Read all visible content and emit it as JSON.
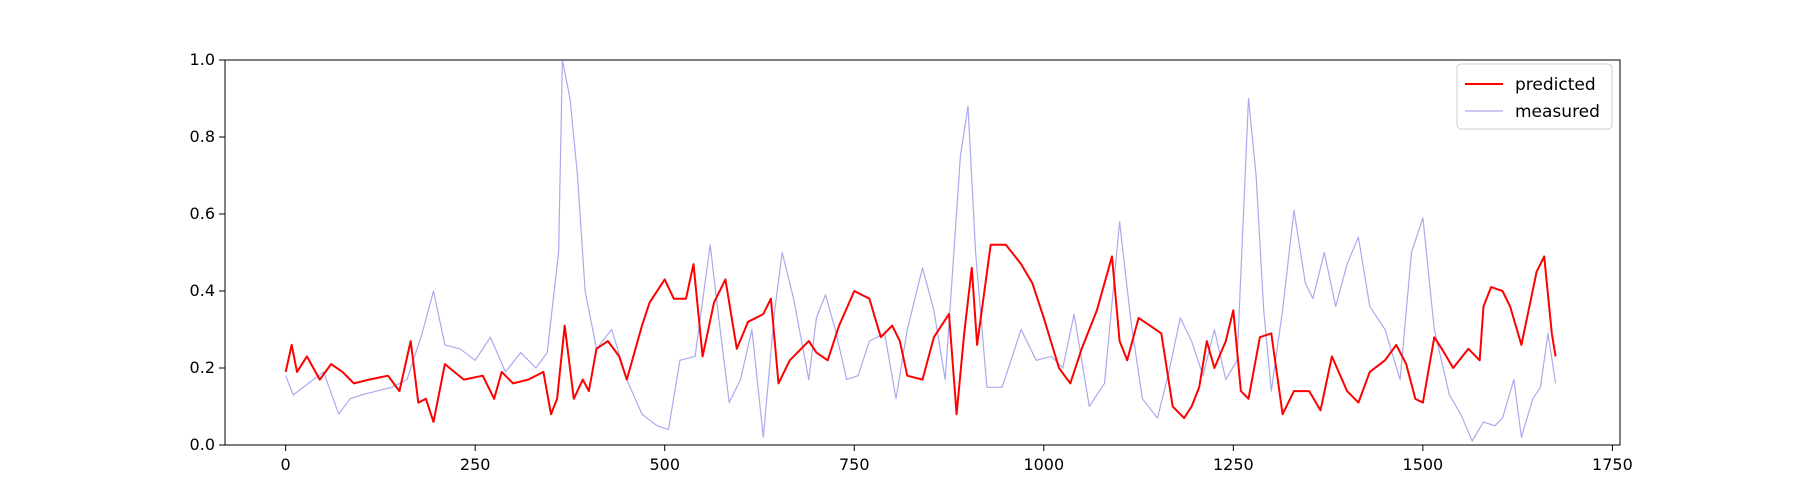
{
  "chart_data": {
    "type": "line",
    "title": "",
    "xlabel": "",
    "ylabel": "",
    "xlim": [
      -80,
      1760
    ],
    "ylim": [
      0,
      1
    ],
    "xticks": [
      0,
      250,
      500,
      750,
      1000,
      1250,
      1500,
      1750
    ],
    "yticks": [
      0.0,
      0.2,
      0.4,
      0.6,
      0.8,
      1.0
    ],
    "xtick_labels": [
      "0",
      "250",
      "500",
      "750",
      "1000",
      "1250",
      "1500",
      "1750"
    ],
    "ytick_labels": [
      "0.0",
      "0.2",
      "0.4",
      "0.6",
      "0.8",
      "1.0"
    ],
    "grid": false,
    "legend": {
      "placement": "top-right",
      "entries": [
        "predicted",
        "measured"
      ]
    },
    "series": [
      {
        "name": "predicted",
        "color": "#ff0000",
        "points": [
          [
            0,
            0.19
          ],
          [
            8,
            0.26
          ],
          [
            15,
            0.19
          ],
          [
            28,
            0.23
          ],
          [
            45,
            0.17
          ],
          [
            60,
            0.21
          ],
          [
            75,
            0.19
          ],
          [
            90,
            0.16
          ],
          [
            110,
            0.17
          ],
          [
            135,
            0.18
          ],
          [
            150,
            0.14
          ],
          [
            165,
            0.27
          ],
          [
            175,
            0.11
          ],
          [
            185,
            0.12
          ],
          [
            195,
            0.06
          ],
          [
            210,
            0.21
          ],
          [
            235,
            0.17
          ],
          [
            260,
            0.18
          ],
          [
            275,
            0.12
          ],
          [
            285,
            0.19
          ],
          [
            300,
            0.16
          ],
          [
            320,
            0.17
          ],
          [
            340,
            0.19
          ],
          [
            350,
            0.08
          ],
          [
            358,
            0.12
          ],
          [
            368,
            0.31
          ],
          [
            380,
            0.12
          ],
          [
            392,
            0.17
          ],
          [
            400,
            0.14
          ],
          [
            410,
            0.25
          ],
          [
            425,
            0.27
          ],
          [
            440,
            0.23
          ],
          [
            450,
            0.17
          ],
          [
            470,
            0.31
          ],
          [
            480,
            0.37
          ],
          [
            500,
            0.43
          ],
          [
            512,
            0.38
          ],
          [
            520,
            0.38
          ],
          [
            528,
            0.38
          ],
          [
            538,
            0.47
          ],
          [
            550,
            0.23
          ],
          [
            565,
            0.37
          ],
          [
            580,
            0.43
          ],
          [
            595,
            0.25
          ],
          [
            610,
            0.32
          ],
          [
            630,
            0.34
          ],
          [
            640,
            0.38
          ],
          [
            650,
            0.16
          ],
          [
            665,
            0.22
          ],
          [
            690,
            0.27
          ],
          [
            700,
            0.24
          ],
          [
            715,
            0.22
          ],
          [
            730,
            0.31
          ],
          [
            750,
            0.4
          ],
          [
            770,
            0.38
          ],
          [
            785,
            0.28
          ],
          [
            800,
            0.31
          ],
          [
            810,
            0.27
          ],
          [
            820,
            0.18
          ],
          [
            840,
            0.17
          ],
          [
            855,
            0.28
          ],
          [
            875,
            0.34
          ],
          [
            885,
            0.08
          ],
          [
            895,
            0.29
          ],
          [
            905,
            0.46
          ],
          [
            912,
            0.26
          ],
          [
            930,
            0.52
          ],
          [
            950,
            0.52
          ],
          [
            970,
            0.47
          ],
          [
            985,
            0.42
          ],
          [
            1000,
            0.33
          ],
          [
            1020,
            0.2
          ],
          [
            1035,
            0.16
          ],
          [
            1050,
            0.25
          ],
          [
            1070,
            0.35
          ],
          [
            1090,
            0.49
          ],
          [
            1100,
            0.27
          ],
          [
            1110,
            0.22
          ],
          [
            1125,
            0.33
          ],
          [
            1140,
            0.31
          ],
          [
            1155,
            0.29
          ],
          [
            1170,
            0.1
          ],
          [
            1185,
            0.07
          ],
          [
            1195,
            0.1
          ],
          [
            1205,
            0.15
          ],
          [
            1215,
            0.27
          ],
          [
            1225,
            0.2
          ],
          [
            1240,
            0.27
          ],
          [
            1250,
            0.35
          ],
          [
            1260,
            0.14
          ],
          [
            1270,
            0.12
          ],
          [
            1285,
            0.28
          ],
          [
            1300,
            0.29
          ],
          [
            1315,
            0.08
          ],
          [
            1330,
            0.14
          ],
          [
            1350,
            0.14
          ],
          [
            1365,
            0.09
          ],
          [
            1380,
            0.23
          ],
          [
            1400,
            0.14
          ],
          [
            1415,
            0.11
          ],
          [
            1430,
            0.19
          ],
          [
            1450,
            0.22
          ],
          [
            1465,
            0.26
          ],
          [
            1478,
            0.21
          ],
          [
            1490,
            0.12
          ],
          [
            1500,
            0.11
          ],
          [
            1515,
            0.28
          ],
          [
            1525,
            0.25
          ],
          [
            1540,
            0.2
          ],
          [
            1560,
            0.25
          ],
          [
            1575,
            0.22
          ],
          [
            1580,
            0.36
          ],
          [
            1590,
            0.41
          ],
          [
            1605,
            0.4
          ],
          [
            1615,
            0.36
          ],
          [
            1630,
            0.26
          ],
          [
            1650,
            0.45
          ],
          [
            1660,
            0.49
          ],
          [
            1670,
            0.29
          ],
          [
            1675,
            0.23
          ]
        ]
      },
      {
        "name": "measured",
        "color": "#aaaaee",
        "points": [
          [
            0,
            0.18
          ],
          [
            10,
            0.13
          ],
          [
            30,
            0.16
          ],
          [
            50,
            0.19
          ],
          [
            70,
            0.08
          ],
          [
            85,
            0.12
          ],
          [
            100,
            0.13
          ],
          [
            120,
            0.14
          ],
          [
            140,
            0.15
          ],
          [
            160,
            0.17
          ],
          [
            180,
            0.29
          ],
          [
            195,
            0.4
          ],
          [
            210,
            0.26
          ],
          [
            230,
            0.25
          ],
          [
            250,
            0.22
          ],
          [
            270,
            0.28
          ],
          [
            290,
            0.19
          ],
          [
            310,
            0.24
          ],
          [
            330,
            0.2
          ],
          [
            345,
            0.24
          ],
          [
            360,
            0.5
          ],
          [
            365,
            1.0
          ],
          [
            375,
            0.9
          ],
          [
            385,
            0.7
          ],
          [
            395,
            0.4
          ],
          [
            410,
            0.25
          ],
          [
            430,
            0.3
          ],
          [
            450,
            0.17
          ],
          [
            470,
            0.08
          ],
          [
            490,
            0.05
          ],
          [
            505,
            0.04
          ],
          [
            520,
            0.22
          ],
          [
            540,
            0.23
          ],
          [
            560,
            0.52
          ],
          [
            570,
            0.35
          ],
          [
            585,
            0.11
          ],
          [
            600,
            0.17
          ],
          [
            615,
            0.3
          ],
          [
            630,
            0.02
          ],
          [
            645,
            0.35
          ],
          [
            655,
            0.5
          ],
          [
            670,
            0.38
          ],
          [
            690,
            0.17
          ],
          [
            700,
            0.33
          ],
          [
            712,
            0.39
          ],
          [
            725,
            0.3
          ],
          [
            740,
            0.17
          ],
          [
            755,
            0.18
          ],
          [
            770,
            0.27
          ],
          [
            790,
            0.29
          ],
          [
            805,
            0.12
          ],
          [
            820,
            0.3
          ],
          [
            840,
            0.46
          ],
          [
            855,
            0.35
          ],
          [
            870,
            0.17
          ],
          [
            890,
            0.75
          ],
          [
            900,
            0.88
          ],
          [
            910,
            0.5
          ],
          [
            925,
            0.15
          ],
          [
            945,
            0.15
          ],
          [
            970,
            0.3
          ],
          [
            990,
            0.22
          ],
          [
            1010,
            0.23
          ],
          [
            1025,
            0.2
          ],
          [
            1040,
            0.34
          ],
          [
            1060,
            0.1
          ],
          [
            1080,
            0.16
          ],
          [
            1100,
            0.58
          ],
          [
            1115,
            0.32
          ],
          [
            1130,
            0.12
          ],
          [
            1150,
            0.07
          ],
          [
            1165,
            0.19
          ],
          [
            1180,
            0.33
          ],
          [
            1195,
            0.27
          ],
          [
            1210,
            0.18
          ],
          [
            1225,
            0.3
          ],
          [
            1240,
            0.17
          ],
          [
            1255,
            0.22
          ],
          [
            1270,
            0.9
          ],
          [
            1280,
            0.7
          ],
          [
            1290,
            0.35
          ],
          [
            1300,
            0.14
          ],
          [
            1315,
            0.35
          ],
          [
            1330,
            0.61
          ],
          [
            1345,
            0.42
          ],
          [
            1355,
            0.38
          ],
          [
            1370,
            0.5
          ],
          [
            1385,
            0.36
          ],
          [
            1400,
            0.47
          ],
          [
            1415,
            0.54
          ],
          [
            1430,
            0.36
          ],
          [
            1450,
            0.3
          ],
          [
            1470,
            0.17
          ],
          [
            1485,
            0.5
          ],
          [
            1500,
            0.59
          ],
          [
            1515,
            0.3
          ],
          [
            1535,
            0.13
          ],
          [
            1550,
            0.08
          ],
          [
            1565,
            0.01
          ],
          [
            1580,
            0.06
          ],
          [
            1595,
            0.05
          ],
          [
            1605,
            0.07
          ],
          [
            1620,
            0.17
          ],
          [
            1630,
            0.02
          ],
          [
            1645,
            0.12
          ],
          [
            1655,
            0.15
          ],
          [
            1665,
            0.29
          ],
          [
            1675,
            0.16
          ]
        ]
      }
    ]
  }
}
